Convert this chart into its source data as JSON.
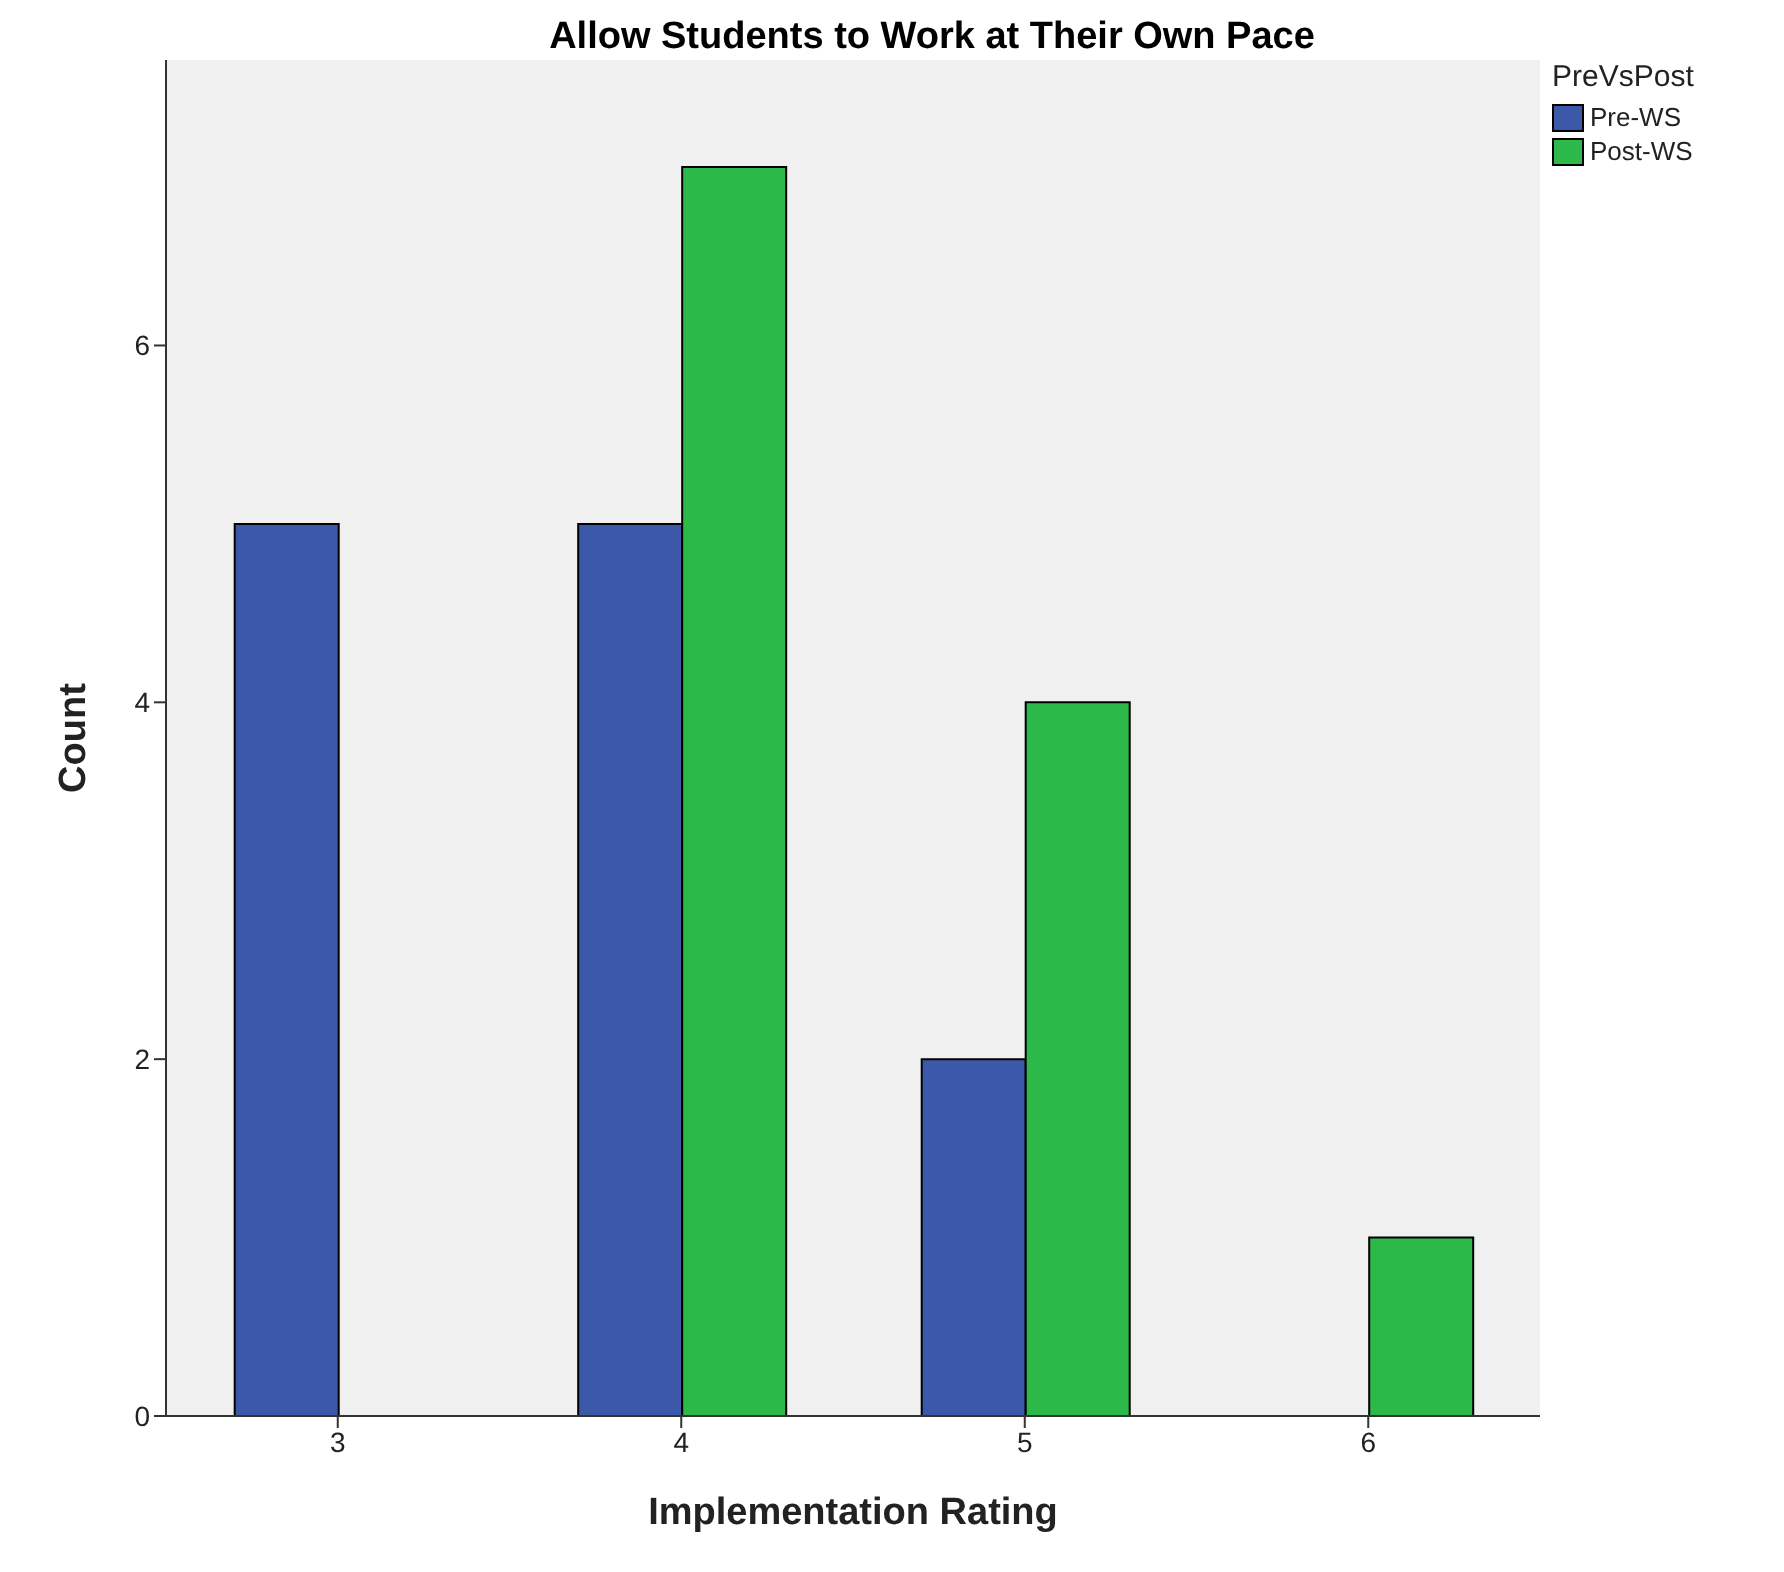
{
  "chart_data": {
    "type": "bar",
    "title": "Allow Students to Work at Their Own Pace",
    "xlabel": "Implementation Rating",
    "ylabel": "Count",
    "legend_title": "PreVsPost",
    "categories": [
      "3",
      "4",
      "5",
      "6"
    ],
    "series": [
      {
        "name": "Pre-WS",
        "color": "#3c58a8",
        "values": [
          5,
          5,
          2,
          0
        ]
      },
      {
        "name": "Post-WS",
        "color": "#2db84a",
        "values": [
          0,
          7,
          4,
          1
        ]
      }
    ],
    "ylim": [
      0,
      7.6
    ],
    "yticks": [
      0,
      2,
      4,
      6
    ],
    "grid": false,
    "legend": "top right"
  }
}
